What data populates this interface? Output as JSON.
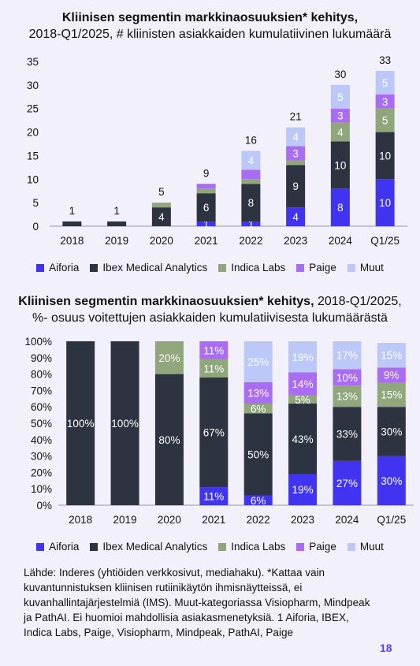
{
  "chart1": {
    "title_bold": "Kliinisen segmentin markkinaosuuksien* kehitys,",
    "title_rest": "2018-Q1/2025, # kliinisten asiakkaiden kumulatiivinen lukumäärä"
  },
  "chart2": {
    "title_bold": "Kliinisen segmentin markkinaosuuksien* kehitys,",
    "title_rest_1": " 2018-Q1/2025,",
    "title_rest_2": "%- osuus voitettujen asiakkaiden kumulatiivisesta lukumäärästä"
  },
  "source_text": "Lähde: Inderes (yhtiöiden verkkosivut, mediahaku). *Kattaa vain kuvantunnistuksen kliinisen rutiinikäytön ihmisnäytteissä, ei kuvanhallintajärjestelmiä (IMS). Muut-kategoriassa Visiopharm, Mindpeak ja PathAI. Ei huomioi mahdollisia asiakasmenetyksiä. 1 Aiforia, IBEX, Indica Labs, Paige, Visiopharm, Mindpeak, PathAI, Paige",
  "page_number": "18",
  "legend": [
    {
      "name": "Aiforia",
      "color": "#4034f0"
    },
    {
      "name": "Ibex Medical Analytics",
      "color": "#2d3340"
    },
    {
      "name": "Indica Labs",
      "color": "#8fa77a"
    },
    {
      "name": "Paige",
      "color": "#a96cf2"
    },
    {
      "name": "Muut",
      "color": "#bcc8f7"
    }
  ],
  "chart_data": [
    {
      "type": "bar",
      "stacked": true,
      "categories": [
        "2018",
        "2019",
        "2020",
        "2021",
        "2022",
        "2023",
        "2024",
        "Q1/25"
      ],
      "ylim": [
        0,
        35
      ],
      "yticks": [
        "0",
        "5",
        "10",
        "15",
        "20",
        "25",
        "30",
        "35"
      ],
      "totals": [
        "1",
        "1",
        "5",
        "9",
        "16",
        "21",
        "30",
        "33"
      ],
      "series": [
        {
          "name": "Aiforia",
          "values": [
            0,
            0,
            0,
            1,
            1,
            4,
            8,
            10
          ],
          "labels": [
            "",
            "",
            "",
            "1",
            "1",
            "4",
            "8",
            "10"
          ]
        },
        {
          "name": "Ibex Medical Analytics",
          "values": [
            1,
            1,
            4,
            6,
            8,
            9,
            10,
            10
          ],
          "labels": [
            "",
            "",
            "4",
            "6",
            "8",
            "9",
            "10",
            "10"
          ]
        },
        {
          "name": "Indica Labs",
          "values": [
            0,
            0,
            1,
            1,
            1,
            1,
            4,
            5
          ],
          "labels": [
            "",
            "",
            "",
            "",
            "",
            "",
            "4",
            "5"
          ]
        },
        {
          "name": "Paige",
          "values": [
            0,
            0,
            0,
            1,
            2,
            3,
            3,
            3
          ],
          "labels": [
            "",
            "",
            "",
            "",
            "",
            "3",
            "3",
            "3"
          ]
        },
        {
          "name": "Muut",
          "values": [
            0,
            0,
            0,
            0,
            4,
            4,
            5,
            5
          ],
          "labels": [
            "",
            "",
            "",
            "",
            "4",
            "4",
            "5",
            "5"
          ]
        }
      ]
    },
    {
      "type": "bar",
      "stacked": true,
      "percent": true,
      "categories": [
        "2018",
        "2019",
        "2020",
        "2021",
        "2022",
        "2023",
        "2024",
        "Q1/25"
      ],
      "ylim": [
        0,
        100
      ],
      "yticks": [
        "0%",
        "10%",
        "20%",
        "30%",
        "40%",
        "50%",
        "60%",
        "70%",
        "80%",
        "90%",
        "100%"
      ],
      "series": [
        {
          "name": "Aiforia",
          "values": [
            0,
            0,
            0,
            11,
            6,
            19,
            27,
            30
          ],
          "labels": [
            "",
            "",
            "",
            "11%",
            "6%",
            "19%",
            "27%",
            "30%"
          ]
        },
        {
          "name": "Ibex Medical Analytics",
          "values": [
            100,
            100,
            80,
            67,
            50,
            43,
            33,
            30
          ],
          "labels": [
            "100%",
            "100%",
            "80%",
            "67%",
            "50%",
            "43%",
            "33%",
            "30%"
          ]
        },
        {
          "name": "Indica Labs",
          "values": [
            0,
            0,
            20,
            11,
            6,
            5,
            13,
            15
          ],
          "labels": [
            "",
            "",
            "20%",
            "11%",
            "6%",
            "5%",
            "13%",
            "15%"
          ]
        },
        {
          "name": "Paige",
          "values": [
            0,
            0,
            0,
            11,
            13,
            14,
            10,
            9
          ],
          "labels": [
            "",
            "",
            "",
            "11%",
            "13%",
            "14%",
            "10%",
            "9%"
          ]
        },
        {
          "name": "Muut",
          "values": [
            0,
            0,
            0,
            0,
            25,
            19,
            17,
            15
          ],
          "labels": [
            "",
            "",
            "",
            "",
            "25%",
            "19%",
            "17%",
            "15%"
          ]
        }
      ]
    }
  ]
}
